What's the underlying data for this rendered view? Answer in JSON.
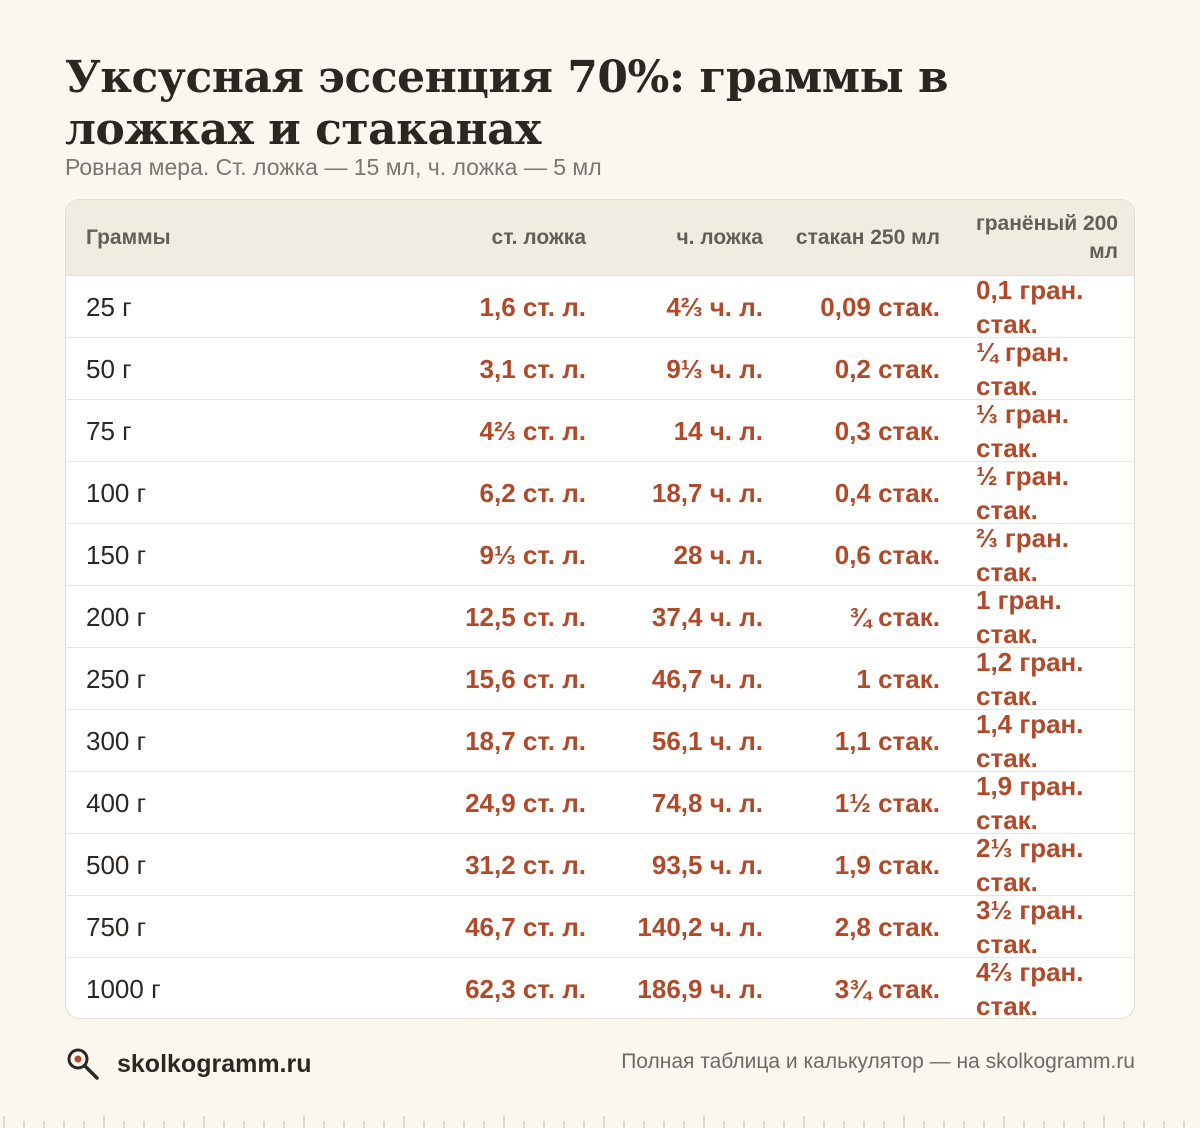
{
  "title": "Уксусная эссенция 70%: граммы в ложках и стаканах",
  "subtitle": "Ровная мера. Ст. ложка — 15 мл, ч. ложка — 5 мл",
  "table": {
    "headers": [
      "Граммы",
      "ст. ложка",
      "ч. ложка",
      "стакан 250 мл",
      "гранёный 200 мл"
    ],
    "rows": [
      [
        "25 г",
        "1,6 ст. л.",
        "4⅔ ч. л.",
        "0,09 стак.",
        "0,1 гран. стак."
      ],
      [
        "50 г",
        "3,1 ст. л.",
        "9⅓ ч. л.",
        "0,2 стак.",
        "¼ гран. стак."
      ],
      [
        "75 г",
        "4⅔ ст. л.",
        "14 ч. л.",
        "0,3 стак.",
        "⅓ гран. стак."
      ],
      [
        "100 г",
        "6,2 ст. л.",
        "18,7 ч. л.",
        "0,4 стак.",
        "½ гран. стак."
      ],
      [
        "150 г",
        "9⅓ ст. л.",
        "28 ч. л.",
        "0,6 стак.",
        "⅔ гран. стак."
      ],
      [
        "200 г",
        "12,5 ст. л.",
        "37,4 ч. л.",
        "¾ стак.",
        "1 гран. стак."
      ],
      [
        "250 г",
        "15,6 ст. л.",
        "46,7 ч. л.",
        "1 стак.",
        "1,2 гран. стак."
      ],
      [
        "300 г",
        "18,7 ст. л.",
        "56,1 ч. л.",
        "1,1 стак.",
        "1,4 гран. стак."
      ],
      [
        "400 г",
        "24,9 ст. л.",
        "74,8 ч. л.",
        "1½ стак.",
        "1,9 гран. стак."
      ],
      [
        "500 г",
        "31,2 ст. л.",
        "93,5 ч. л.",
        "1,9 стак.",
        "2⅓ гран. стак."
      ],
      [
        "750 г",
        "46,7 ст. л.",
        "140,2 ч. л.",
        "2,8 стак.",
        "3½ гран. стак."
      ],
      [
        "1000 г",
        "62,3 ст. л.",
        "186,9 ч. л.",
        "3¾ стак.",
        "4⅔ гран. стак."
      ]
    ]
  },
  "footer": {
    "site": "skolkogramm.ru",
    "note": "Полная таблица и калькулятор — на skolkogramm.ru",
    "logo_icon": "magnifier-icon"
  },
  "colors": {
    "background": "#faf7ef",
    "accent": "#b04a2b",
    "header_bg": "#f1ece2"
  }
}
